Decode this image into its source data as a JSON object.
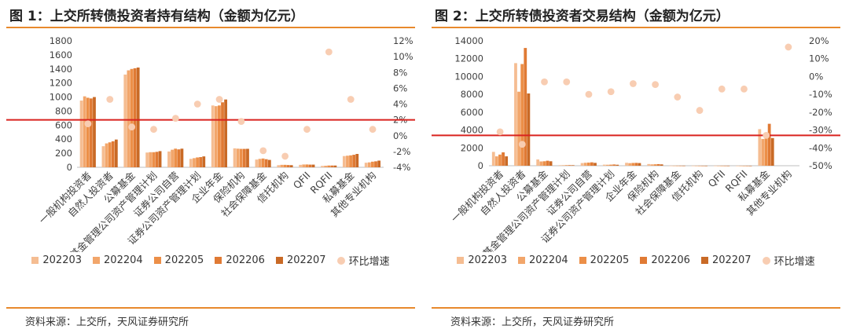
{
  "colors": {
    "accent_rule": "#e8892c",
    "hline": "#d9231f",
    "dot": "#f8cdb2",
    "series": [
      "#f5bd92",
      "#f2a66b",
      "#ec8f48",
      "#e07a34",
      "#c96a26"
    ]
  },
  "charts": [
    {
      "title": "图 1：上交所转债投资者持有结构（金额为亿元）",
      "source": "资料来源：上交所，天风证券研究所",
      "legend": [
        "202203",
        "202204",
        "202205",
        "202206",
        "202207",
        "环比增速"
      ]
    },
    {
      "title": "图 2：上交所转债投资者交易结构（金额为亿元）",
      "source": "资料来源：上交所，天风证券研究所",
      "legend": [
        "202203",
        "202204",
        "202205",
        "202206",
        "202207",
        "环比增速"
      ]
    }
  ],
  "chart_data": [
    {
      "type": "bar",
      "categories": [
        "一般机构投资者",
        "自然人投资者",
        "公募基金",
        "基金管理公司资产管理计划",
        "证券公司自营",
        "证券公司资产管理计划",
        "企业年金",
        "保险机构",
        "社会保障基金",
        "信托机构",
        "QFII",
        "RQFII",
        "私募基金",
        "其他专业机构"
      ],
      "series": [
        {
          "name": "202203",
          "values": [
            950,
            300,
            1320,
            210,
            225,
            120,
            880,
            270,
            110,
            30,
            35,
            20,
            160,
            65
          ]
        },
        {
          "name": "202204",
          "values": [
            1010,
            340,
            1380,
            215,
            250,
            130,
            870,
            265,
            120,
            35,
            40,
            22,
            165,
            70
          ]
        },
        {
          "name": "202205",
          "values": [
            990,
            355,
            1400,
            215,
            265,
            140,
            880,
            262,
            125,
            35,
            40,
            25,
            170,
            80
          ]
        },
        {
          "name": "202206",
          "values": [
            980,
            370,
            1410,
            220,
            255,
            145,
            925,
            262,
            115,
            32,
            38,
            25,
            178,
            85
          ]
        },
        {
          "name": "202207",
          "values": [
            1000,
            395,
            1420,
            230,
            265,
            155,
            965,
            263,
            105,
            30,
            38,
            25,
            190,
            95
          ]
        }
      ],
      "rate": {
        "name": "环比增速",
        "values": [
          1.5,
          4.6,
          1.1,
          0.8,
          2.2,
          4.0,
          4.6,
          1.8,
          -1.9,
          -2.6,
          0.8,
          10.6,
          4.6,
          0.8
        ]
      },
      "ylim": [
        0,
        1800
      ],
      "yticks": [
        "0",
        "200",
        "400",
        "600",
        "800",
        "1000",
        "1200",
        "1400",
        "1600",
        "1800"
      ],
      "y2lim": [
        -4,
        12
      ],
      "y2ticks": [
        "-4%",
        "-2%",
        "0%",
        "2%",
        "4%",
        "6%",
        "8%",
        "10%",
        "12%"
      ],
      "reference_line": 2
    },
    {
      "type": "bar",
      "categories": [
        "一般机构投资者",
        "自然人投资者",
        "公募基金",
        "基金管理公司资产管理计划",
        "证券公司自营",
        "证券公司资产管理计划",
        "企业年金",
        "保险机构",
        "社会保障基金",
        "信托机构",
        "QFII",
        "RQFII",
        "私募基金",
        "其他专业机构"
      ],
      "series": [
        {
          "name": "202203",
          "values": [
            1550,
            11500,
            700,
            60,
            300,
            120,
            330,
            190,
            10,
            5,
            6,
            2,
            4100,
            0
          ]
        },
        {
          "name": "202204",
          "values": [
            1050,
            8300,
            480,
            55,
            330,
            110,
            290,
            150,
            8,
            4,
            5,
            2,
            3000,
            0
          ]
        },
        {
          "name": "202205",
          "values": [
            1250,
            11400,
            500,
            65,
            350,
            120,
            310,
            160,
            10,
            5,
            6,
            2,
            3200,
            0
          ]
        },
        {
          "name": "202206",
          "values": [
            1500,
            13200,
            560,
            70,
            380,
            140,
            320,
            180,
            12,
            5,
            7,
            3,
            4700,
            0
          ]
        },
        {
          "name": "202207",
          "values": [
            1050,
            8100,
            500,
            60,
            320,
            110,
            300,
            150,
            10,
            4,
            6,
            2,
            3100,
            0
          ]
        }
      ],
      "rate": {
        "name": "环比增速",
        "values": [
          -31,
          -38,
          -3,
          -3,
          -10,
          -8.5,
          -4,
          -4.5,
          -11.5,
          -19,
          -7,
          -7,
          -33,
          16.5
        ]
      },
      "ylim": [
        0,
        14000
      ],
      "yticks": [
        "0",
        "2000",
        "4000",
        "6000",
        "8000",
        "10000",
        "12000",
        "14000"
      ],
      "y2lim": [
        -50,
        20
      ],
      "y2ticks": [
        "-50%",
        "-40%",
        "-30%",
        "-20%",
        "-10%",
        "0%",
        "10%",
        "20%"
      ],
      "reference_line": -33
    }
  ]
}
